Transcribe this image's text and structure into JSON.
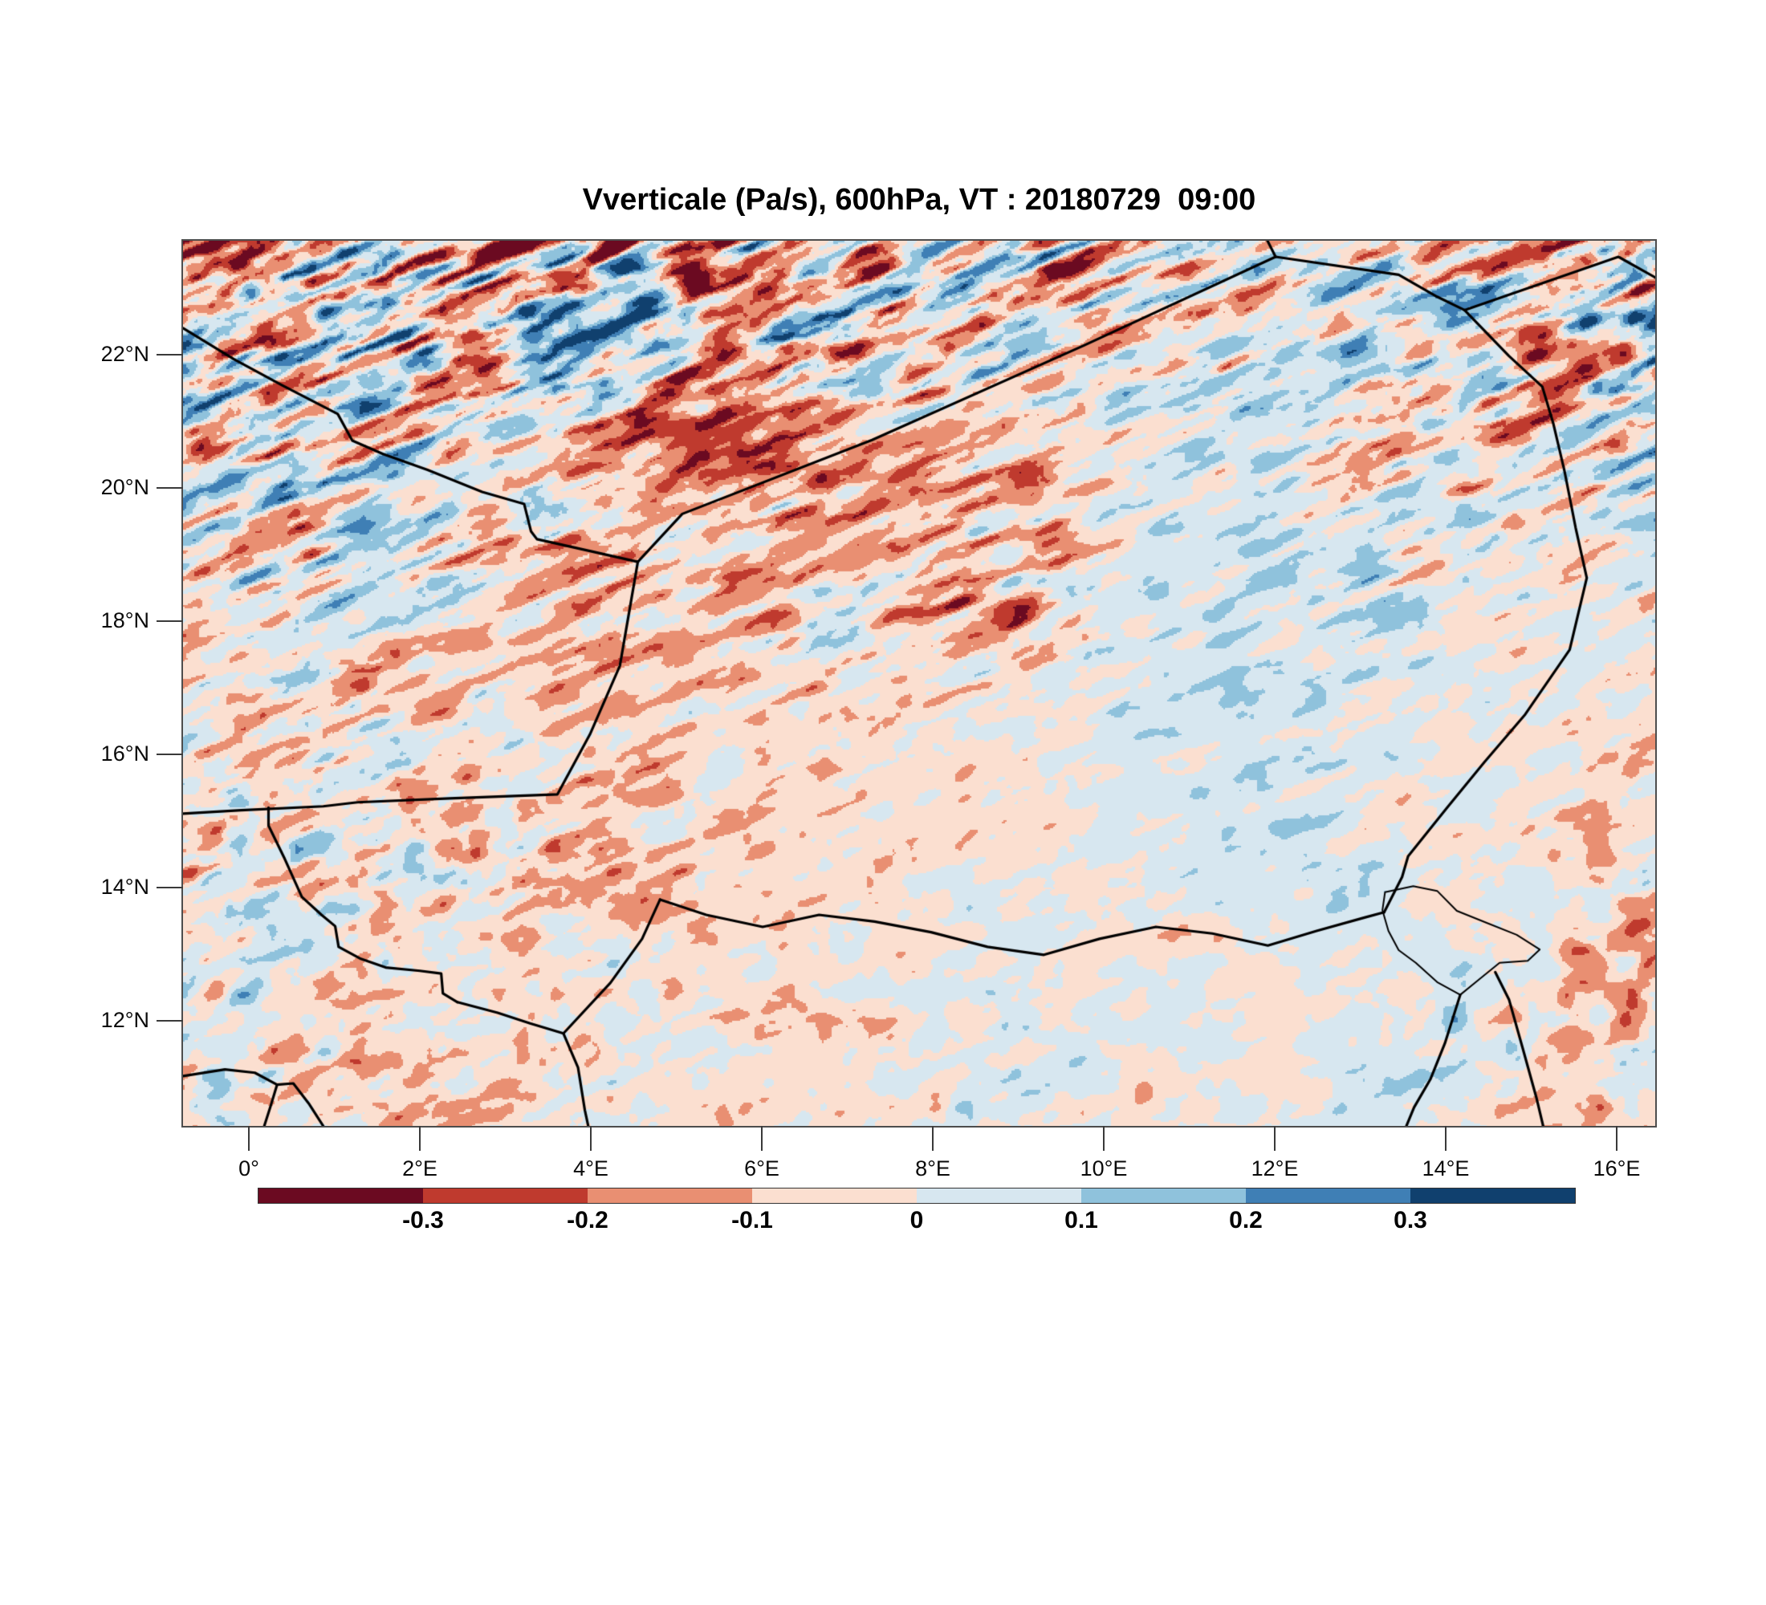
{
  "title": "Vverticale (Pa/s), 600hPa, VT : 20180729  09:00",
  "chart_data": {
    "type": "heatmap",
    "variable": "Vverticale",
    "units": "Pa/s",
    "pressure_level": "600hPa",
    "valid_time": "20180729  09:00",
    "title": "Vverticale (Pa/s), 600hPa, VT : 20180729  09:00",
    "legend_position": "bottom",
    "grid": "off",
    "x_axis": {
      "tick_labels": [
        "0°",
        "2°E",
        "4°E",
        "6°E",
        "8°E",
        "10°E",
        "12°E",
        "14°E",
        "16°E"
      ],
      "tick_lons": [
        0,
        2,
        4,
        6,
        8,
        10,
        12,
        14,
        16
      ]
    },
    "y_axis": {
      "tick_labels": [
        "22°N",
        "20°N",
        "18°N",
        "16°N",
        "14°N",
        "12°N"
      ],
      "tick_lats": [
        22,
        20,
        18,
        16,
        14,
        12
      ]
    },
    "lon_range": [
      -0.77,
      16.45
    ],
    "lat_range": [
      10.42,
      23.71
    ],
    "levels": [
      -0.3,
      -0.2,
      -0.1,
      0,
      0.1,
      0.2,
      0.3
    ],
    "palette": [
      "#6b0a21",
      "#bf3a2e",
      "#e98f72",
      "#fbdfd0",
      "#d7e7f0",
      "#8fc2dc",
      "#3f7fb5",
      "#10406e"
    ],
    "bias_grid": [
      [
        -0.12,
        -0.08,
        -0.05,
        -0.08,
        -0.1,
        -0.08,
        -0.05,
        0.0,
        0.02,
        -0.05,
        -0.08,
        -0.02,
        0.0,
        -0.02,
        -0.1,
        -0.1
      ],
      [
        0.02,
        0.05,
        0.08,
        0.1,
        0.12,
        0.08,
        0.05,
        0.02,
        0.0,
        -0.02,
        0.0,
        0.02,
        0.05,
        0.02,
        -0.05,
        0.05
      ],
      [
        -0.02,
        0.0,
        0.02,
        0.0,
        -0.05,
        -0.15,
        -0.2,
        -0.15,
        -0.05,
        0.0,
        0.02,
        0.0,
        -0.02,
        -0.05,
        -0.08,
        0.1
      ],
      [
        0.0,
        0.02,
        0.0,
        -0.05,
        -0.1,
        -0.1,
        -0.08,
        -0.05,
        -0.1,
        -0.05,
        0.03,
        0.05,
        0.02,
        0.0,
        -0.05,
        0.08
      ],
      [
        -0.02,
        0.0,
        -0.04,
        -0.07,
        -0.09,
        -0.07,
        -0.08,
        -0.06,
        -0.12,
        -0.08,
        0.06,
        0.04,
        0.1,
        0.02,
        0.0,
        -0.02
      ],
      [
        -0.04,
        -0.08,
        -0.06,
        -0.08,
        -0.06,
        -0.05,
        -0.06,
        -0.06,
        -0.04,
        0.0,
        0.04,
        0.07,
        0.03,
        0.0,
        -0.04,
        -0.06
      ],
      [
        0.0,
        -0.04,
        0.0,
        -0.05,
        -0.08,
        -0.07,
        -0.05,
        -0.04,
        -0.04,
        0.0,
        0.02,
        0.04,
        0.0,
        -0.04,
        -0.04,
        0.0
      ],
      [
        -0.04,
        0.0,
        -0.04,
        -0.07,
        -0.05,
        -0.04,
        -0.06,
        -0.04,
        0.03,
        0.0,
        -0.03,
        0.0,
        0.04,
        0.02,
        -0.06,
        -0.08
      ],
      [
        0.0,
        -0.04,
        -0.04,
        -0.05,
        -0.04,
        0.0,
        -0.04,
        -0.06,
        0.0,
        0.04,
        0.02,
        -0.03,
        0.0,
        0.06,
        -0.04,
        -0.06
      ],
      [
        -0.04,
        0.0,
        -0.06,
        -0.04,
        0.0,
        -0.04,
        -0.04,
        0.0,
        0.02,
        0.0,
        -0.03,
        0.0,
        0.04,
        0.0,
        -0.04,
        -0.03
      ]
    ],
    "amp_grid": [
      [
        0.55,
        0.55,
        0.55,
        0.55,
        0.55,
        0.55,
        0.5,
        0.5,
        0.5,
        0.45,
        0.4,
        0.3,
        0.3,
        0.35,
        0.55,
        0.55
      ],
      [
        0.5,
        0.5,
        0.55,
        0.55,
        0.5,
        0.5,
        0.45,
        0.4,
        0.35,
        0.3,
        0.3,
        0.28,
        0.3,
        0.32,
        0.45,
        0.55
      ],
      [
        0.4,
        0.4,
        0.35,
        0.3,
        0.3,
        0.35,
        0.3,
        0.3,
        0.3,
        0.25,
        0.2,
        0.22,
        0.28,
        0.3,
        0.32,
        0.38
      ],
      [
        0.35,
        0.35,
        0.3,
        0.3,
        0.3,
        0.3,
        0.28,
        0.25,
        0.35,
        0.3,
        0.18,
        0.18,
        0.24,
        0.28,
        0.26,
        0.3
      ],
      [
        0.3,
        0.28,
        0.28,
        0.26,
        0.26,
        0.24,
        0.28,
        0.3,
        0.35,
        0.3,
        0.15,
        0.18,
        0.26,
        0.16,
        0.15,
        0.2
      ],
      [
        0.3,
        0.3,
        0.28,
        0.26,
        0.24,
        0.2,
        0.16,
        0.15,
        0.14,
        0.14,
        0.14,
        0.16,
        0.15,
        0.14,
        0.16,
        0.18
      ],
      [
        0.35,
        0.35,
        0.32,
        0.3,
        0.26,
        0.22,
        0.16,
        0.14,
        0.14,
        0.14,
        0.14,
        0.16,
        0.16,
        0.16,
        0.2,
        0.18
      ],
      [
        0.32,
        0.3,
        0.3,
        0.26,
        0.22,
        0.2,
        0.15,
        0.14,
        0.15,
        0.14,
        0.13,
        0.14,
        0.16,
        0.14,
        0.22,
        0.26
      ],
      [
        0.3,
        0.3,
        0.26,
        0.22,
        0.2,
        0.16,
        0.17,
        0.17,
        0.17,
        0.17,
        0.14,
        0.13,
        0.14,
        0.2,
        0.26,
        0.26
      ],
      [
        0.26,
        0.26,
        0.24,
        0.22,
        0.2,
        0.18,
        0.17,
        0.16,
        0.15,
        0.15,
        0.14,
        0.14,
        0.15,
        0.17,
        0.2,
        0.2
      ]
    ],
    "borders": [
      [
        [
          -0.77,
          22.4
        ],
        [
          -0.17,
          21.93
        ],
        [
          0.39,
          21.54
        ],
        [
          1.04,
          21.11
        ],
        [
          1.21,
          20.71
        ],
        [
          1.57,
          20.51
        ],
        [
          2.09,
          20.27
        ],
        [
          2.73,
          19.94
        ],
        [
          3.22,
          19.76
        ],
        [
          3.3,
          19.35
        ],
        [
          3.37,
          19.23
        ],
        [
          4.0,
          19.05
        ],
        [
          4.55,
          18.89
        ]
      ],
      [
        [
          4.55,
          18.89
        ],
        [
          5.07,
          19.61
        ],
        [
          7.29,
          20.72
        ],
        [
          9.77,
          22.14
        ],
        [
          12.01,
          23.47
        ]
      ],
      [
        [
          12.01,
          23.47
        ],
        [
          11.9,
          23.75
        ]
      ],
      [
        [
          12.01,
          23.47
        ],
        [
          13.45,
          23.2
        ],
        [
          13.9,
          22.87
        ],
        [
          14.22,
          22.67
        ]
      ],
      [
        [
          14.22,
          22.67
        ],
        [
          16.02,
          23.47
        ],
        [
          16.45,
          23.16
        ]
      ],
      [
        [
          14.22,
          22.67
        ],
        [
          14.74,
          21.98
        ],
        [
          15.13,
          21.52
        ],
        [
          15.26,
          20.96
        ],
        [
          15.39,
          20.25
        ],
        [
          15.52,
          19.4
        ],
        [
          15.65,
          18.65
        ],
        [
          15.45,
          17.57
        ],
        [
          14.93,
          16.6
        ],
        [
          14.45,
          15.88
        ],
        [
          14.01,
          15.19
        ],
        [
          13.56,
          14.47
        ],
        [
          13.49,
          14.16
        ],
        [
          13.28,
          13.63
        ]
      ],
      [
        [
          4.55,
          18.89
        ],
        [
          4.34,
          17.33
        ],
        [
          3.99,
          16.3
        ],
        [
          3.61,
          15.4
        ],
        [
          2.35,
          15.34
        ],
        [
          1.27,
          15.28
        ],
        [
          0.87,
          15.22
        ],
        [
          -0.09,
          15.16
        ],
        [
          -0.77,
          15.11
        ]
      ],
      [
        [
          0.23,
          15.2
        ],
        [
          0.23,
          14.93
        ],
        [
          0.42,
          14.43
        ],
        [
          0.62,
          13.86
        ],
        [
          0.85,
          13.59
        ],
        [
          1.01,
          13.42
        ],
        [
          1.05,
          13.11
        ],
        [
          1.31,
          12.93
        ],
        [
          1.6,
          12.8
        ],
        [
          2.0,
          12.75
        ],
        [
          2.25,
          12.71
        ],
        [
          2.27,
          12.41
        ],
        [
          2.44,
          12.28
        ]
      ],
      [
        [
          2.44,
          12.28
        ],
        [
          2.91,
          12.12
        ],
        [
          3.29,
          11.96
        ],
        [
          3.68,
          11.81
        ]
      ],
      [
        [
          3.68,
          11.81
        ],
        [
          3.85,
          11.3
        ],
        [
          3.93,
          10.66
        ],
        [
          3.97,
          10.42
        ]
      ],
      [
        [
          4.81,
          13.82
        ],
        [
          4.6,
          13.23
        ],
        [
          4.23,
          12.57
        ],
        [
          3.68,
          11.81
        ]
      ],
      [
        [
          4.81,
          13.82
        ],
        [
          5.35,
          13.59
        ],
        [
          6.01,
          13.41
        ],
        [
          6.67,
          13.59
        ],
        [
          7.32,
          13.49
        ],
        [
          7.98,
          13.33
        ],
        [
          8.64,
          13.11
        ],
        [
          9.3,
          12.99
        ],
        [
          9.95,
          13.23
        ],
        [
          10.61,
          13.41
        ],
        [
          11.27,
          13.31
        ],
        [
          11.92,
          13.13
        ],
        [
          12.49,
          13.35
        ],
        [
          13.05,
          13.55
        ],
        [
          13.28,
          13.63
        ]
      ],
      [
        [
          -0.77,
          11.17
        ],
        [
          -0.28,
          11.27
        ],
        [
          0.07,
          11.22
        ],
        [
          0.33,
          11.04
        ],
        [
          0.52,
          11.06
        ],
        [
          0.7,
          10.76
        ],
        [
          0.87,
          10.42
        ]
      ],
      [
        [
          0.33,
          11.04
        ],
        [
          0.25,
          10.7
        ],
        [
          0.18,
          10.42
        ]
      ],
      [
        [
          14.58,
          12.73
        ],
        [
          14.74,
          12.32
        ],
        [
          14.9,
          11.59
        ],
        [
          15.06,
          10.85
        ],
        [
          15.14,
          10.42
        ]
      ],
      [
        [
          14.17,
          12.39
        ],
        [
          13.99,
          11.66
        ],
        [
          13.82,
          11.12
        ],
        [
          13.63,
          10.7
        ],
        [
          13.54,
          10.42
        ]
      ]
    ],
    "lake_outline": [
      [
        13.29,
        13.93
      ],
      [
        13.62,
        14.02
      ],
      [
        13.9,
        13.95
      ],
      [
        14.13,
        13.65
      ],
      [
        14.48,
        13.47
      ],
      [
        14.83,
        13.29
      ],
      [
        15.1,
        13.07
      ],
      [
        14.96,
        12.9
      ],
      [
        14.63,
        12.87
      ],
      [
        14.37,
        12.6
      ],
      [
        14.17,
        12.39
      ],
      [
        13.9,
        12.58
      ],
      [
        13.65,
        12.87
      ],
      [
        13.45,
        13.06
      ],
      [
        13.33,
        13.35
      ],
      [
        13.26,
        13.66
      ],
      [
        13.29,
        13.93
      ]
    ]
  },
  "colorbar": {
    "tick_labels": [
      "-0.3",
      "-0.2",
      "-0.1",
      "0",
      "0.1",
      "0.2",
      "0.3"
    ],
    "colors": [
      "#6b0a21",
      "#bf3a2e",
      "#e98f72",
      "#fbdfd0",
      "#d7e7f0",
      "#8fc2dc",
      "#3f7fb5",
      "#10406e"
    ]
  }
}
